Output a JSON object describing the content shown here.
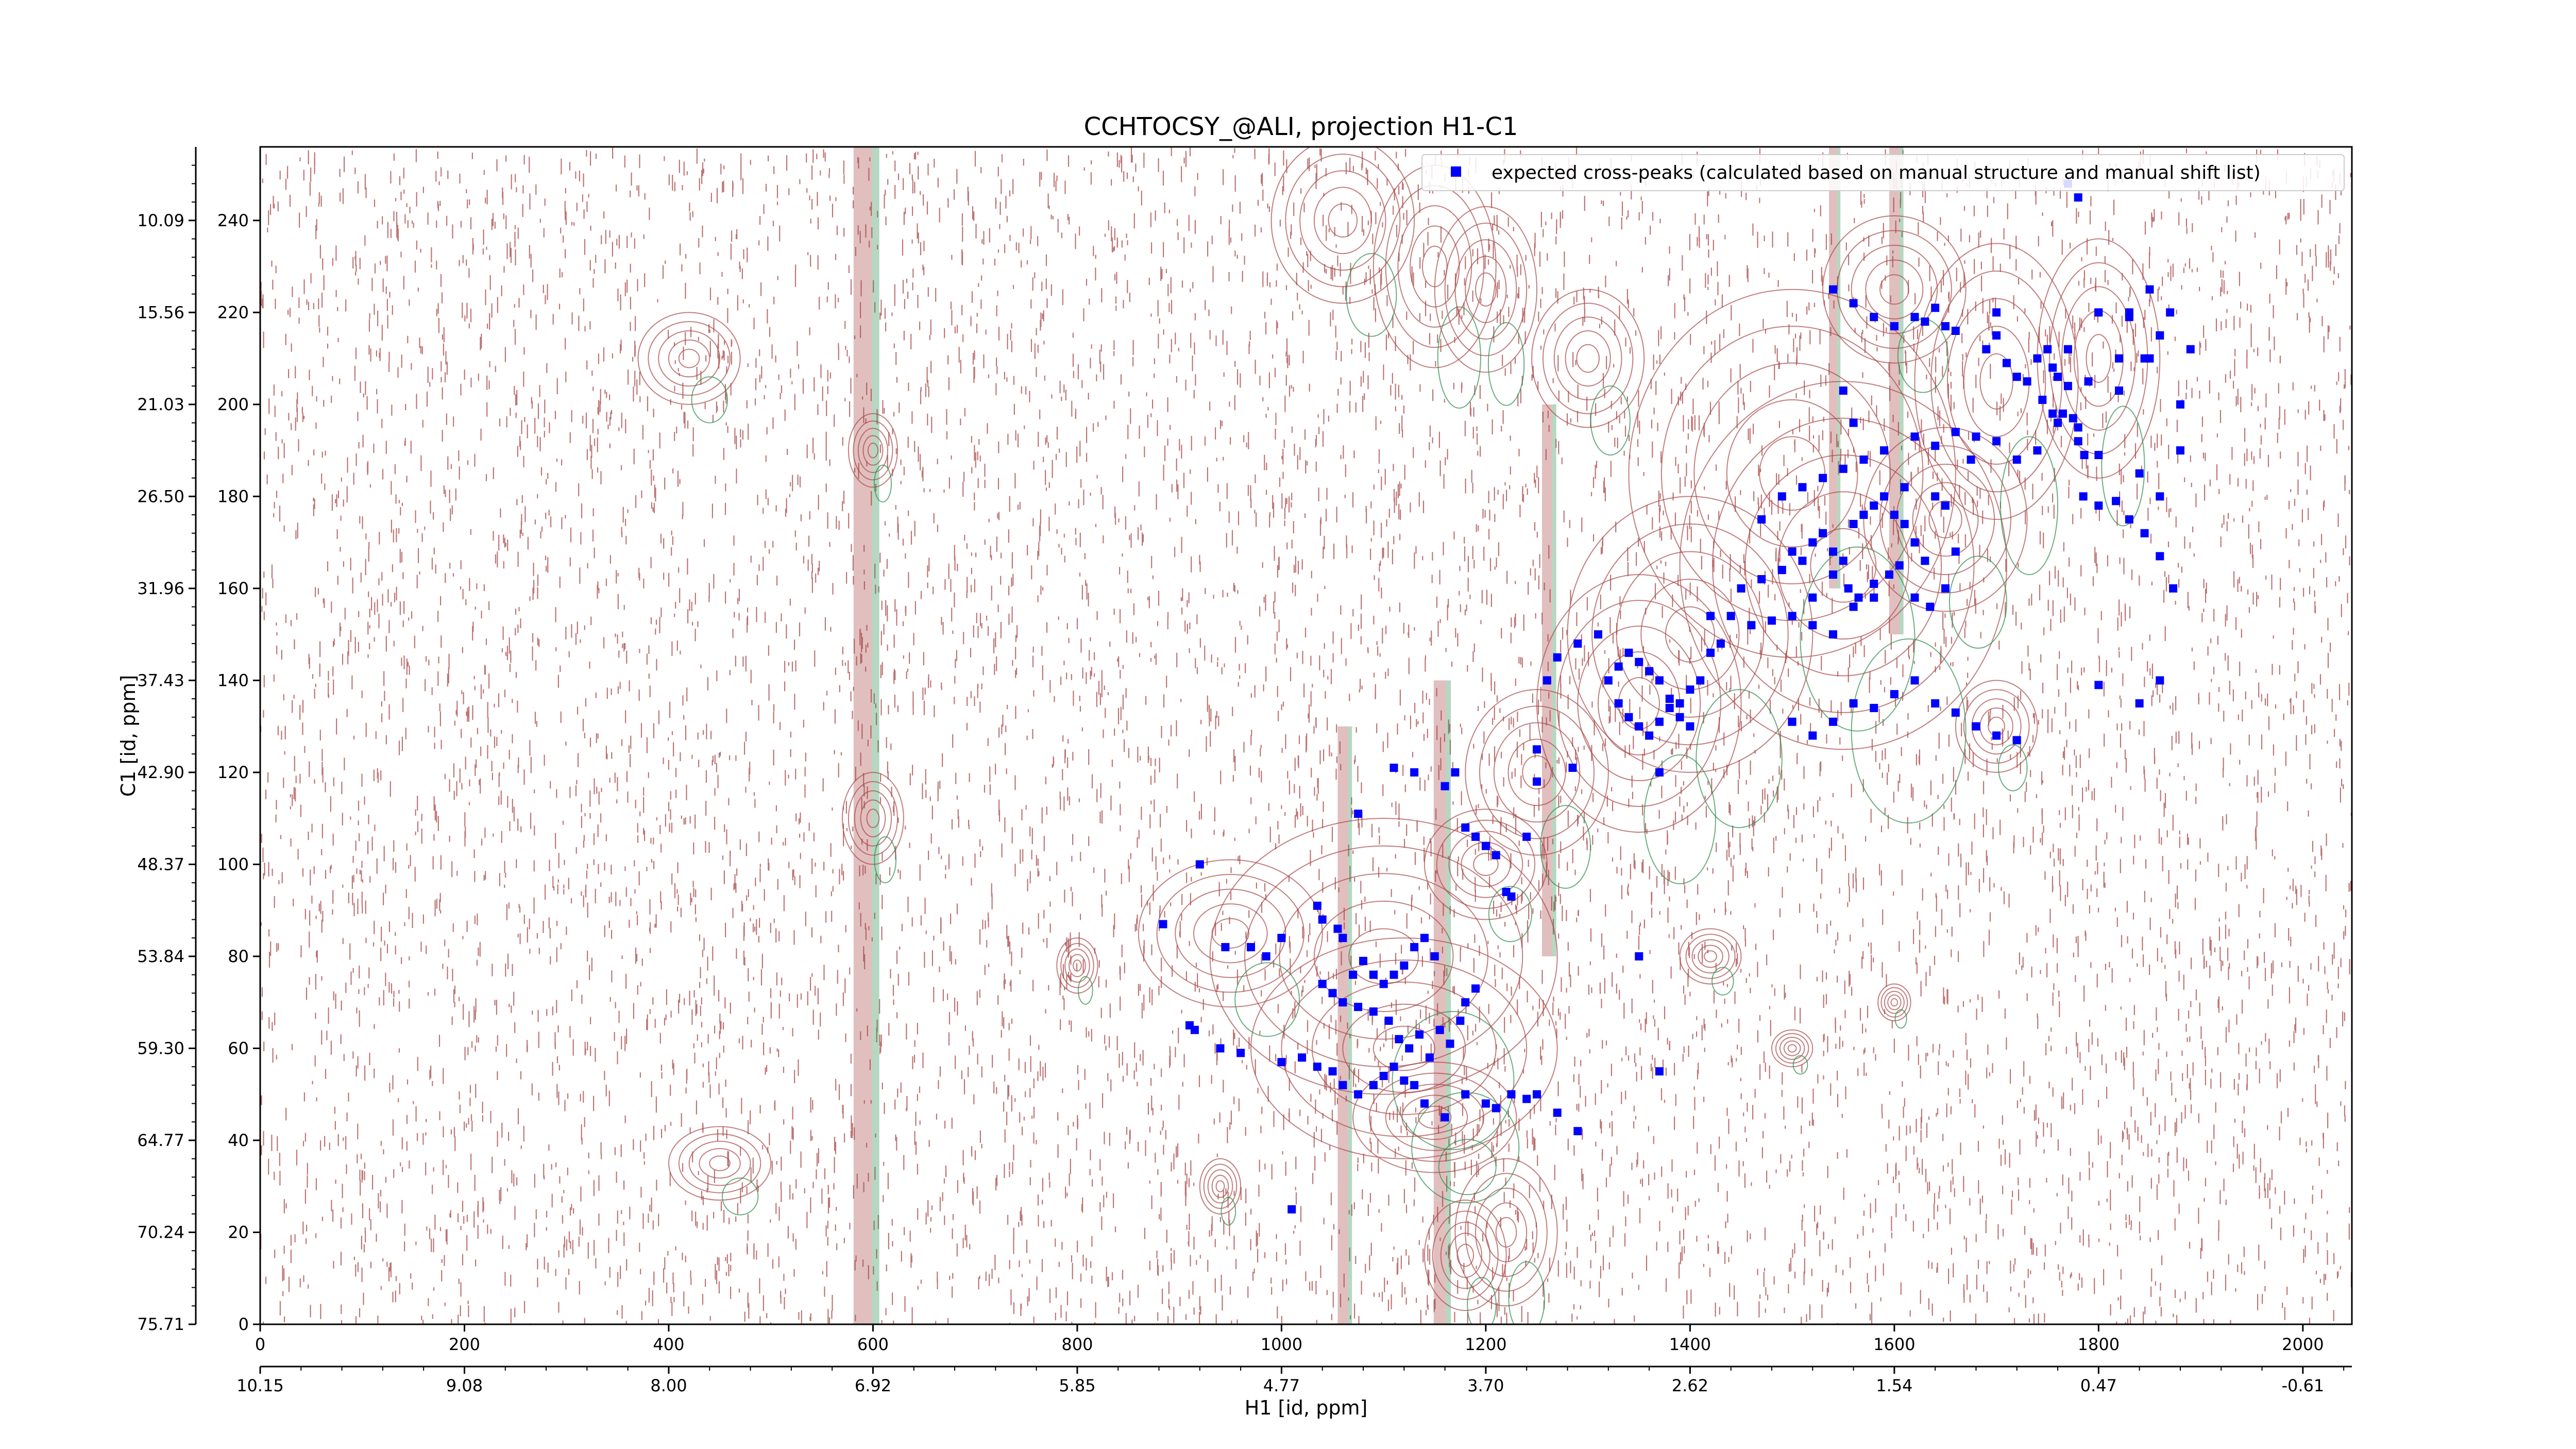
{
  "chart_data": {
    "type": "scatter",
    "title": "CCHTOCSY_@ALI, projection H1-C1",
    "xlabel": "H1 [id, ppm]",
    "ylabel": "C1 [id, ppm]",
    "xlim": [
      0,
      2048
    ],
    "ylim": [
      0,
      256
    ],
    "x_ticks": [
      0,
      200,
      400,
      600,
      800,
      1000,
      1200,
      1400,
      1600,
      1800,
      2000
    ],
    "y_ticks": [
      0,
      20,
      40,
      60,
      80,
      100,
      120,
      140,
      160,
      180,
      200,
      220,
      240
    ],
    "x_ppm_ticks": [
      {
        "pos": 0,
        "label": "10.15"
      },
      {
        "pos": 200,
        "label": "9.08"
      },
      {
        "pos": 400,
        "label": "8.00"
      },
      {
        "pos": 600,
        "label": "6.92"
      },
      {
        "pos": 800,
        "label": "5.85"
      },
      {
        "pos": 1000,
        "label": "4.77"
      },
      {
        "pos": 1200,
        "label": "3.70"
      },
      {
        "pos": 1400,
        "label": "2.62"
      },
      {
        "pos": 1600,
        "label": "1.54"
      },
      {
        "pos": 1800,
        "label": "0.47"
      },
      {
        "pos": 2000,
        "label": "-0.61"
      }
    ],
    "y_ppm_ticks": [
      {
        "pos": 0,
        "label": "75.71"
      },
      {
        "pos": 20,
        "label": "70.24"
      },
      {
        "pos": 40,
        "label": "64.77"
      },
      {
        "pos": 60,
        "label": "59.30"
      },
      {
        "pos": 80,
        "label": "53.84"
      },
      {
        "pos": 100,
        "label": "48.37"
      },
      {
        "pos": 120,
        "label": "42.90"
      },
      {
        "pos": 140,
        "label": "37.43"
      },
      {
        "pos": 160,
        "label": "31.96"
      },
      {
        "pos": 180,
        "label": "26.50"
      },
      {
        "pos": 200,
        "label": "21.03"
      },
      {
        "pos": 220,
        "label": "15.56"
      },
      {
        "pos": 240,
        "label": "10.09"
      }
    ],
    "legend": {
      "placement": "top-right",
      "entries": [
        "expected cross-peaks (calculated based on manual structure and manual shift list)"
      ]
    },
    "series": [
      {
        "name": "expected cross-peaks (calculated based on manual structure and manual shift list)",
        "color": "#0000ff",
        "marker": "square",
        "points": [
          [
            884,
            87
          ],
          [
            920,
            100
          ],
          [
            945,
            82
          ],
          [
            970,
            82
          ],
          [
            985,
            80
          ],
          [
            1000,
            84
          ],
          [
            1035,
            91
          ],
          [
            1040,
            88
          ],
          [
            1055,
            86
          ],
          [
            1060,
            84
          ],
          [
            1070,
            76
          ],
          [
            1080,
            79
          ],
          [
            1090,
            76
          ],
          [
            1100,
            74
          ],
          [
            1110,
            76
          ],
          [
            1120,
            78
          ],
          [
            1130,
            82
          ],
          [
            1140,
            84
          ],
          [
            1150,
            80
          ],
          [
            1040,
            74
          ],
          [
            1050,
            72
          ],
          [
            1060,
            70
          ],
          [
            1075,
            69
          ],
          [
            1090,
            68
          ],
          [
            1105,
            66
          ],
          [
            1115,
            62
          ],
          [
            1125,
            60
          ],
          [
            1135,
            63
          ],
          [
            1145,
            58
          ],
          [
            1155,
            64
          ],
          [
            1165,
            61
          ],
          [
            1175,
            66
          ],
          [
            1180,
            70
          ],
          [
            1190,
            73
          ],
          [
            1000,
            57
          ],
          [
            1020,
            58
          ],
          [
            1035,
            56
          ],
          [
            1050,
            55
          ],
          [
            1060,
            52
          ],
          [
            1075,
            50
          ],
          [
            1090,
            52
          ],
          [
            1100,
            54
          ],
          [
            1110,
            56
          ],
          [
            1120,
            53
          ],
          [
            1130,
            52
          ],
          [
            1140,
            48
          ],
          [
            1160,
            45
          ],
          [
            1180,
            50
          ],
          [
            1200,
            48
          ],
          [
            1210,
            47
          ],
          [
            1225,
            50
          ],
          [
            1240,
            49
          ],
          [
            1250,
            50
          ],
          [
            1270,
            46
          ],
          [
            1290,
            42
          ],
          [
            940,
            60
          ],
          [
            960,
            59
          ],
          [
            910,
            65
          ],
          [
            915,
            64
          ],
          [
            1010,
            25
          ],
          [
            1075,
            111
          ],
          [
            1130,
            120
          ],
          [
            1160,
            117
          ],
          [
            1180,
            108
          ],
          [
            1190,
            106
          ],
          [
            1200,
            104
          ],
          [
            1210,
            102
          ],
          [
            1220,
            94
          ],
          [
            1225,
            93
          ],
          [
            1240,
            106
          ],
          [
            1250,
            125
          ],
          [
            1110,
            121
          ],
          [
            1170,
            120
          ],
          [
            1285,
            121
          ],
          [
            1370,
            120
          ],
          [
            1350,
            80
          ],
          [
            1370,
            55
          ],
          [
            1250,
            118
          ],
          [
            1260,
            140
          ],
          [
            1270,
            145
          ],
          [
            1290,
            148
          ],
          [
            1310,
            150
          ],
          [
            1320,
            140
          ],
          [
            1330,
            143
          ],
          [
            1340,
            146
          ],
          [
            1350,
            144
          ],
          [
            1360,
            142
          ],
          [
            1370,
            140
          ],
          [
            1380,
            136
          ],
          [
            1390,
            135
          ],
          [
            1400,
            138
          ],
          [
            1410,
            140
          ],
          [
            1420,
            146
          ],
          [
            1430,
            148
          ],
          [
            1330,
            135
          ],
          [
            1340,
            132
          ],
          [
            1350,
            130
          ],
          [
            1360,
            128
          ],
          [
            1370,
            131
          ],
          [
            1380,
            134
          ],
          [
            1390,
            132
          ],
          [
            1400,
            130
          ],
          [
            1420,
            154
          ],
          [
            1440,
            154
          ],
          [
            1460,
            152
          ],
          [
            1480,
            153
          ],
          [
            1500,
            154
          ],
          [
            1520,
            152
          ],
          [
            1540,
            150
          ],
          [
            1560,
            156
          ],
          [
            1580,
            158
          ],
          [
            1450,
            160
          ],
          [
            1470,
            162
          ],
          [
            1490,
            164
          ],
          [
            1500,
            168
          ],
          [
            1510,
            166
          ],
          [
            1520,
            170
          ],
          [
            1530,
            172
          ],
          [
            1540,
            168
          ],
          [
            1550,
            166
          ],
          [
            1560,
            174
          ],
          [
            1570,
            176
          ],
          [
            1580,
            178
          ],
          [
            1590,
            180
          ],
          [
            1600,
            176
          ],
          [
            1610,
            174
          ],
          [
            1620,
            170
          ],
          [
            1630,
            166
          ],
          [
            1470,
            175
          ],
          [
            1490,
            180
          ],
          [
            1510,
            182
          ],
          [
            1530,
            184
          ],
          [
            1550,
            186
          ],
          [
            1570,
            188
          ],
          [
            1590,
            190
          ],
          [
            1610,
            182
          ],
          [
            1640,
            180
          ],
          [
            1650,
            178
          ],
          [
            1675,
            188
          ],
          [
            1520,
            158
          ],
          [
            1540,
            163
          ],
          [
            1555,
            160
          ],
          [
            1565,
            158
          ],
          [
            1580,
            161
          ],
          [
            1595,
            163
          ],
          [
            1605,
            165
          ],
          [
            1620,
            158
          ],
          [
            1635,
            156
          ],
          [
            1650,
            160
          ],
          [
            1660,
            168
          ],
          [
            1500,
            131
          ],
          [
            1520,
            128
          ],
          [
            1540,
            131
          ],
          [
            1560,
            135
          ],
          [
            1580,
            134
          ],
          [
            1600,
            137
          ],
          [
            1620,
            140
          ],
          [
            1640,
            135
          ],
          [
            1660,
            133
          ],
          [
            1680,
            130
          ],
          [
            1700,
            128
          ],
          [
            1720,
            127
          ],
          [
            1550,
            203
          ],
          [
            1560,
            196
          ],
          [
            1620,
            193
          ],
          [
            1640,
            191
          ],
          [
            1660,
            194
          ],
          [
            1680,
            193
          ],
          [
            1700,
            192
          ],
          [
            1720,
            188
          ],
          [
            1740,
            190
          ],
          [
            1760,
            196
          ],
          [
            1780,
            195
          ],
          [
            1800,
            189
          ],
          [
            1600,
            217
          ],
          [
            1620,
            219
          ],
          [
            1640,
            221
          ],
          [
            1660,
            216
          ],
          [
            1690,
            212
          ],
          [
            1710,
            209
          ],
          [
            1730,
            205
          ],
          [
            1745,
            201
          ],
          [
            1755,
            198
          ],
          [
            1700,
            215
          ],
          [
            1720,
            206
          ],
          [
            1740,
            210
          ],
          [
            1770,
            212
          ],
          [
            1790,
            205
          ],
          [
            1800,
            220
          ],
          [
            1830,
            219
          ],
          [
            1850,
            225
          ],
          [
            1860,
            215
          ],
          [
            1880,
            200
          ],
          [
            1540,
            225
          ],
          [
            1560,
            222
          ],
          [
            1580,
            219
          ],
          [
            1630,
            218
          ],
          [
            1650,
            217
          ],
          [
            1700,
            220
          ],
          [
            1820,
            210
          ],
          [
            1845,
            210
          ],
          [
            1770,
            248
          ],
          [
            1780,
            245
          ],
          [
            1830,
            220
          ],
          [
            1870,
            220
          ],
          [
            1890,
            212
          ],
          [
            1850,
            210
          ],
          [
            1820,
            203
          ],
          [
            1750,
            212
          ],
          [
            1755,
            208
          ],
          [
            1760,
            206
          ],
          [
            1765,
            198
          ],
          [
            1770,
            204
          ],
          [
            1775,
            197
          ],
          [
            1780,
            192
          ],
          [
            1786,
            189
          ],
          [
            1785,
            180
          ],
          [
            1800,
            178
          ],
          [
            1817,
            179
          ],
          [
            1840,
            185
          ],
          [
            1860,
            180
          ],
          [
            1880,
            190
          ],
          [
            1830,
            175
          ],
          [
            1845,
            172
          ],
          [
            1860,
            167
          ],
          [
            1873,
            160
          ],
          [
            1860,
            140
          ],
          [
            1840,
            135
          ],
          [
            1800,
            139
          ]
        ]
      }
    ]
  },
  "overlay": {
    "contour_positive_color": "#a84848",
    "contour_negative_color": "#2e8b4e",
    "noise_color": "#a84848",
    "peaks": [
      [
        1060,
        240,
        70,
        18
      ],
      [
        1150,
        230,
        60,
        22
      ],
      [
        1200,
        225,
        50,
        18
      ],
      [
        1300,
        210,
        55,
        15
      ],
      [
        1500,
        185,
        160,
        40
      ],
      [
        1550,
        165,
        160,
        40
      ],
      [
        1400,
        150,
        120,
        30
      ],
      [
        1350,
        135,
        100,
        28
      ],
      [
        1250,
        120,
        70,
        18
      ],
      [
        1100,
        80,
        170,
        30
      ],
      [
        1120,
        60,
        150,
        24
      ],
      [
        950,
        85,
        90,
        16
      ],
      [
        1150,
        45,
        80,
        12
      ],
      [
        1200,
        100,
        60,
        12
      ],
      [
        1700,
        205,
        80,
        30
      ],
      [
        1800,
        210,
        60,
        26
      ],
      [
        1650,
        175,
        80,
        20
      ],
      [
        1700,
        130,
        40,
        10
      ],
      [
        1600,
        225,
        70,
        16
      ],
      [
        600,
        110,
        30,
        10
      ],
      [
        600,
        190,
        24,
        8
      ],
      [
        420,
        210,
        50,
        10
      ],
      [
        450,
        35,
        50,
        8
      ],
      [
        800,
        78,
        20,
        6
      ],
      [
        1220,
        20,
        50,
        16
      ],
      [
        1180,
        15,
        40,
        12
      ],
      [
        940,
        30,
        20,
        6
      ],
      [
        1420,
        80,
        30,
        6
      ],
      [
        1500,
        60,
        20,
        4
      ],
      [
        1600,
        70,
        16,
        4
      ]
    ],
    "stripes": [
      [
        590,
        0,
        256,
        18
      ],
      [
        1155,
        0,
        140,
        12
      ],
      [
        1060,
        0,
        130,
        10
      ],
      [
        1600,
        150,
        256,
        10
      ],
      [
        1540,
        160,
        256,
        8
      ],
      [
        1260,
        80,
        200,
        10
      ]
    ]
  }
}
